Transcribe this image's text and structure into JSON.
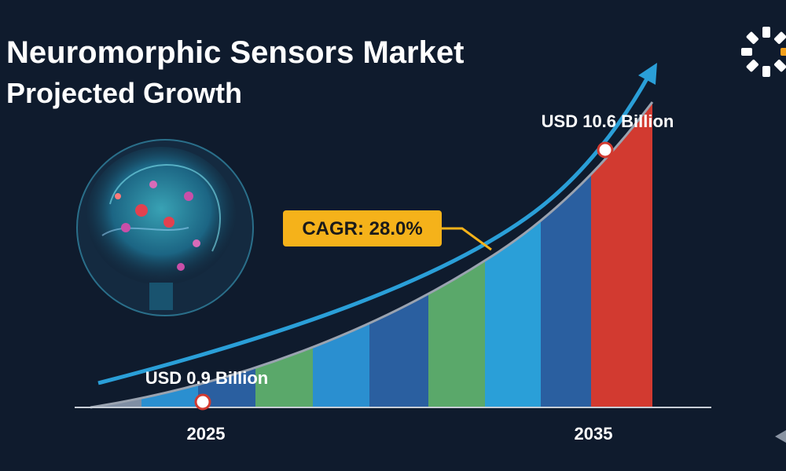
{
  "header": {
    "title_line_1": "Neuromorphic Sensors Market",
    "title_line_2": "Projected Growth"
  },
  "annotations": {
    "start_value": "USD 0.9 Billion",
    "end_value": "USD 10.6 Billion",
    "cagr": "CAGR: 28.0%"
  },
  "axis": {
    "start_year": "2025",
    "end_year": "2035"
  }
}
